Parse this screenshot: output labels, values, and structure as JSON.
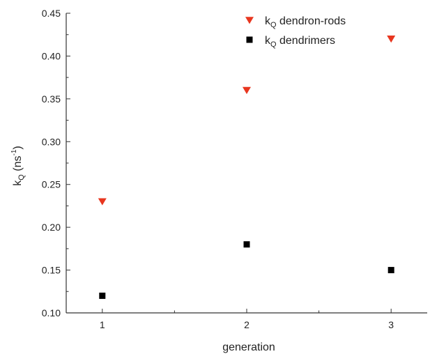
{
  "chart_data": {
    "type": "scatter",
    "xlabel": "generation",
    "ylabel": {
      "main": "k",
      "sub": "Q",
      "rest": " (ns",
      "sup": "-1",
      "close": ")"
    },
    "xlim": [
      0.75,
      3.25
    ],
    "ylim": [
      0.1,
      0.45
    ],
    "xticks": [
      "1",
      "2",
      "3"
    ],
    "yticks": [
      "0.10",
      "0.15",
      "0.20",
      "0.25",
      "0.30",
      "0.35",
      "0.40",
      "0.45"
    ],
    "legend_position": "top-right",
    "series": [
      {
        "name": {
          "main": "k",
          "sub": "Q",
          "rest": " dendron-rods"
        },
        "marker": "triangle-down",
        "color": "#e8361f",
        "x": [
          1,
          2,
          3
        ],
        "y": [
          0.23,
          0.36,
          0.42
        ]
      },
      {
        "name": {
          "main": "k",
          "sub": "Q",
          "rest": " dendrimers"
        },
        "marker": "square",
        "color": "#000000",
        "x": [
          1,
          2,
          3
        ],
        "y": [
          0.12,
          0.18,
          0.15
        ]
      }
    ]
  }
}
